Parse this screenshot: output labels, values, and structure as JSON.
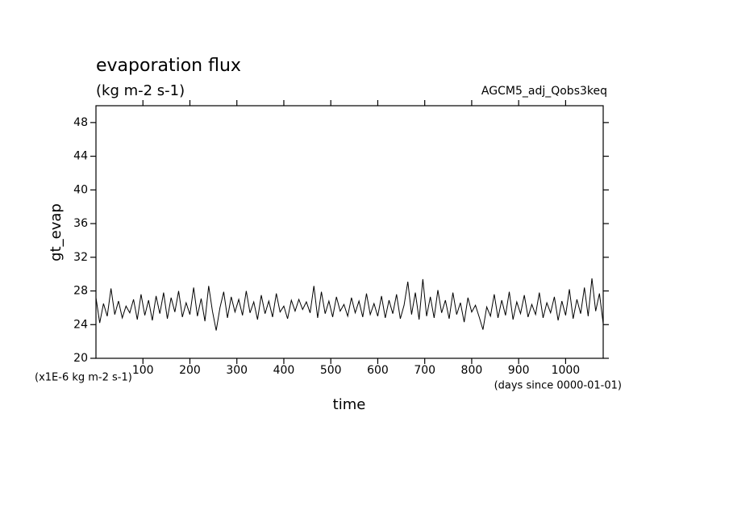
{
  "chart_data": {
    "type": "line",
    "title": "evaporation flux",
    "subtitle": "(kg m-2 s-1)",
    "annotation": "AGCM5_adj_Qobs3keq",
    "y_label": "gt_evap",
    "x_label": "time",
    "y_unit_note": "(x1E-6 kg m-2 s-1)",
    "x_unit_note": "(days since 0000-01-01)",
    "xlim": [
      0,
      1080
    ],
    "ylim": [
      20,
      50
    ],
    "xticks": [
      100,
      200,
      300,
      400,
      500,
      600,
      700,
      800,
      900,
      1000
    ],
    "yticks": [
      20,
      24,
      28,
      32,
      36,
      40,
      44,
      48
    ],
    "color": "#000000",
    "x": [
      0,
      8,
      16,
      24,
      32,
      40,
      48,
      56,
      64,
      72,
      80,
      88,
      96,
      104,
      112,
      120,
      128,
      136,
      144,
      152,
      160,
      168,
      176,
      184,
      192,
      200,
      208,
      216,
      224,
      232,
      240,
      248,
      256,
      264,
      272,
      280,
      288,
      296,
      304,
      312,
      320,
      328,
      336,
      344,
      352,
      360,
      368,
      376,
      384,
      392,
      400,
      408,
      416,
      424,
      432,
      440,
      448,
      456,
      464,
      472,
      480,
      488,
      496,
      504,
      512,
      520,
      528,
      536,
      544,
      552,
      560,
      568,
      576,
      584,
      592,
      600,
      608,
      616,
      624,
      632,
      640,
      648,
      656,
      664,
      672,
      680,
      688,
      696,
      704,
      712,
      720,
      728,
      736,
      744,
      752,
      760,
      768,
      776,
      784,
      792,
      800,
      808,
      816,
      824,
      832,
      840,
      848,
      856,
      864,
      872,
      880,
      888,
      896,
      904,
      912,
      920,
      928,
      936,
      944,
      952,
      960,
      968,
      976,
      984,
      992,
      1000,
      1008,
      1016,
      1024,
      1032,
      1040,
      1048,
      1056,
      1064,
      1072,
      1080
    ],
    "values": [
      27.2,
      24.2,
      26.5,
      25.0,
      28.3,
      25.2,
      26.8,
      24.8,
      26.2,
      25.4,
      27.0,
      24.6,
      27.6,
      25.1,
      26.9,
      24.5,
      27.4,
      25.3,
      27.8,
      24.7,
      27.2,
      25.5,
      28.0,
      24.9,
      26.6,
      25.2,
      28.4,
      25.0,
      27.1,
      24.4,
      28.6,
      25.6,
      23.3,
      26.0,
      27.9,
      24.8,
      27.3,
      25.5,
      27.0,
      25.1,
      28.0,
      25.4,
      26.7,
      24.6,
      27.5,
      25.3,
      26.8,
      24.9,
      27.7,
      25.5,
      26.2,
      24.7,
      26.9,
      25.6,
      27.0,
      25.8,
      26.7,
      25.4,
      28.6,
      24.8,
      27.9,
      25.3,
      26.8,
      24.9,
      27.3,
      25.6,
      26.4,
      25.0,
      27.2,
      25.4,
      26.8,
      24.9,
      27.7,
      25.2,
      26.5,
      25.0,
      27.4,
      24.8,
      26.9,
      25.3,
      27.6,
      24.7,
      26.3,
      29.1,
      25.2,
      27.8,
      24.6,
      29.4,
      25.0,
      27.3,
      24.8,
      28.1,
      25.4,
      26.9,
      24.7,
      27.8,
      25.2,
      26.6,
      24.3,
      27.2,
      25.5,
      26.3,
      24.9,
      23.4,
      26.1,
      25.0,
      27.6,
      24.8,
      26.9,
      25.1,
      27.9,
      24.6,
      26.7,
      25.3,
      27.5,
      24.9,
      26.4,
      25.2,
      27.8,
      24.8,
      26.6,
      25.4,
      27.3,
      24.5,
      26.8,
      25.1,
      28.2,
      24.7,
      27.0,
      25.3,
      28.4,
      25.0,
      29.5,
      25.6,
      27.7,
      24.1
    ]
  }
}
